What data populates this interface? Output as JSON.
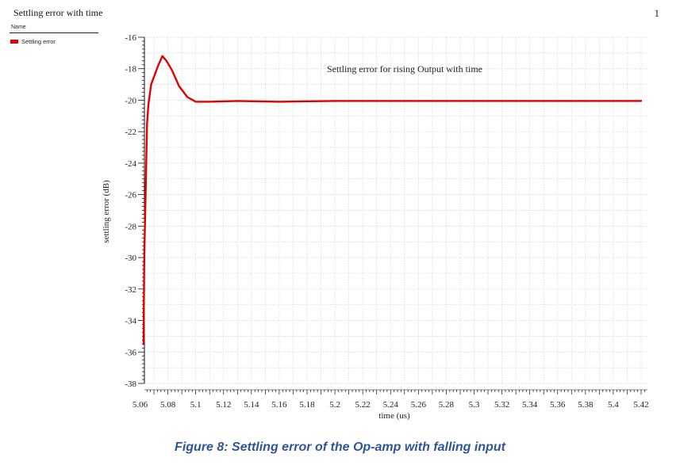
{
  "page": {
    "title": "Settling error with time",
    "page_number": "1",
    "caption": "Figure 8: Settling error of the Op-amp with falling input"
  },
  "legend": {
    "header": "Name",
    "items": [
      {
        "label": "Settling error",
        "color": "#e00000"
      }
    ]
  },
  "chart_data": {
    "type": "line",
    "title": "Settling error for rising Output with time",
    "xlabel": "time (us)",
    "ylabel": "settling error (dB)",
    "xlim": [
      5.06,
      5.425
    ],
    "ylim": [
      -38,
      -16
    ],
    "x_ticks": [
      5.06,
      5.08,
      5.1,
      5.12,
      5.14,
      5.16,
      5.18,
      5.2,
      5.22,
      5.24,
      5.26,
      5.28,
      5.3,
      5.32,
      5.34,
      5.36,
      5.38,
      5.4,
      5.42
    ],
    "x_tick_labels": [
      "5.06",
      "5.08",
      "5.1",
      "5.12",
      "5.14",
      "5.16",
      "5.18",
      "5.2",
      "5.22",
      "5.24",
      "5.26",
      "5.28",
      "5.3",
      "5.32",
      "5.34",
      "5.36",
      "5.38",
      "5.4",
      "5.42"
    ],
    "y_ticks": [
      -16,
      -18,
      -20,
      -22,
      -24,
      -26,
      -28,
      -30,
      -32,
      -34,
      -36,
      -38
    ],
    "y_tick_labels": [
      "-16",
      "-18",
      "-20",
      "-22",
      "-24",
      "-26",
      "-28",
      "-30",
      "-32",
      "-34",
      "-36",
      "-38"
    ],
    "grid": true,
    "series": [
      {
        "name": "Settling error",
        "color": "#e00000",
        "x": [
          5.0625,
          5.063,
          5.064,
          5.065,
          5.066,
          5.068,
          5.0705,
          5.073,
          5.076,
          5.079,
          5.083,
          5.088,
          5.094,
          5.1,
          5.11,
          5.13,
          5.16,
          5.2,
          5.3,
          5.42
        ],
        "y": [
          -35.5,
          -30,
          -26,
          -21.5,
          -20.3,
          -19,
          -18.4,
          -17.8,
          -17.2,
          -17.5,
          -18.1,
          -19.1,
          -19.8,
          -20.1,
          -20.1,
          -20.05,
          -20.1,
          -20.05,
          -20.05,
          -20.05
        ]
      }
    ]
  }
}
